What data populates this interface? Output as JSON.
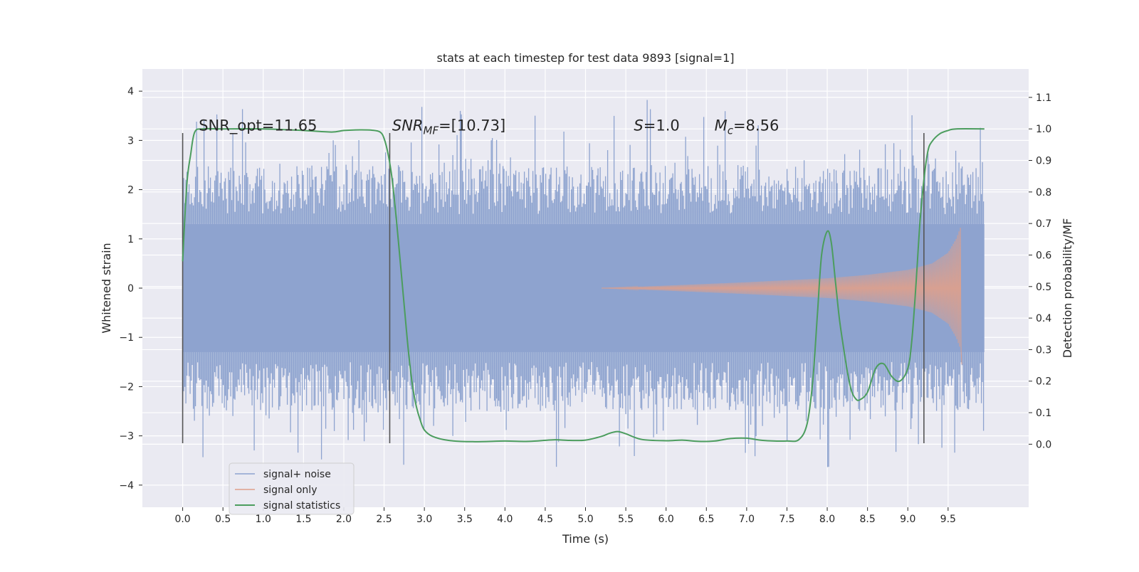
{
  "chart_data": {
    "type": "line",
    "title": "stats at each timestep for test data 9893 [signal=1]",
    "xlabel": "Time (s)",
    "ylabel": "Whitened strain",
    "ylabel_right": "Detection probability/MF",
    "xlim": [
      -0.5,
      10.5
    ],
    "ylim": [
      -4.45,
      4.45
    ],
    "ylim_right": [
      -0.2,
      1.19
    ],
    "x_ticks": [
      0.0,
      0.5,
      1.0,
      1.5,
      2.0,
      2.5,
      3.0,
      3.5,
      4.0,
      4.5,
      5.0,
      5.5,
      6.0,
      6.5,
      7.0,
      7.5,
      8.0,
      8.5,
      9.0,
      9.5
    ],
    "x_tick_labels": [
      "0.0",
      "0.5",
      "1.0",
      "1.5",
      "2.0",
      "2.5",
      "3.0",
      "3.5",
      "4.0",
      "4.5",
      "5.0",
      "5.5",
      "6.0",
      "6.5",
      "7.0",
      "7.5",
      "8.0",
      "8.5",
      "9.0",
      "9.5"
    ],
    "y_ticks": [
      -4,
      -3,
      -2,
      -1,
      0,
      1,
      2,
      3,
      4
    ],
    "y_tick_labels": [
      "−4",
      "−3",
      "−2",
      "−1",
      "0",
      "1",
      "2",
      "3",
      "4"
    ],
    "y_right_ticks": [
      0.0,
      0.1,
      0.2,
      0.3,
      0.4,
      0.5,
      0.6,
      0.7,
      0.8,
      0.9,
      1.0,
      1.1
    ],
    "y_right_tick_labels": [
      "0.0",
      "0.1",
      "0.2",
      "0.3",
      "0.4",
      "0.5",
      "0.6",
      "0.7",
      "0.8",
      "0.9",
      "1.0",
      "1.1"
    ],
    "grid": true,
    "legend_position": "lower-left",
    "annotations": [
      {
        "text": "SNR_opt=11.65",
        "x": 0.2,
        "y": 3.2
      },
      {
        "text_base": "SNR",
        "text_sub": "MF",
        "text_rest": "=[10.73]",
        "x": 2.6,
        "y": 3.2
      },
      {
        "text_base": "S",
        "text_sub": "",
        "text_rest": "=1.0",
        "x": 5.6,
        "y": 3.2
      },
      {
        "text_base": "M",
        "text_sub": "c",
        "text_rest": "=8.56",
        "x": 6.6,
        "y": 3.2
      }
    ],
    "vlines": [
      {
        "x": 0.0,
        "y_range": [
          -3.15,
          3.15
        ]
      },
      {
        "x": 2.57,
        "y_range": [
          -3.15,
          3.15
        ]
      },
      {
        "x": 9.2,
        "y_range": [
          -3.15,
          3.15
        ]
      }
    ],
    "series": [
      {
        "name": "signal+ noise",
        "axis": "left",
        "color": "#8ea3cf",
        "kind": "noise",
        "x_range": [
          0.0,
          9.95
        ],
        "envelope": {
          "core": 1.3,
          "typical_peak": 2.3,
          "max_peak": 4.05,
          "min_peak": -3.95
        }
      },
      {
        "name": "signal only",
        "axis": "left",
        "color": "#e0a08a",
        "kind": "chirp",
        "x_range": [
          5.2,
          9.67
        ],
        "amplitude_points": [
          [
            5.2,
            0.0
          ],
          [
            6.0,
            0.05
          ],
          [
            7.0,
            0.12
          ],
          [
            8.0,
            0.2
          ],
          [
            8.5,
            0.27
          ],
          [
            9.0,
            0.37
          ],
          [
            9.3,
            0.5
          ],
          [
            9.5,
            0.72
          ],
          [
            9.6,
            1.0
          ],
          [
            9.67,
            1.3
          ]
        ]
      },
      {
        "name": "signal statistics",
        "axis": "right",
        "color": "#4c9d5e",
        "kind": "line",
        "points": [
          [
            0.0,
            0.58
          ],
          [
            0.05,
            0.82
          ],
          [
            0.1,
            0.92
          ],
          [
            0.15,
            0.99
          ],
          [
            0.25,
            1.0
          ],
          [
            0.5,
            1.0
          ],
          [
            1.0,
            1.0
          ],
          [
            1.5,
            0.995
          ],
          [
            1.85,
            0.99
          ],
          [
            2.0,
            0.995
          ],
          [
            2.2,
            0.997
          ],
          [
            2.35,
            0.996
          ],
          [
            2.45,
            0.99
          ],
          [
            2.5,
            0.97
          ],
          [
            2.55,
            0.92
          ],
          [
            2.6,
            0.84
          ],
          [
            2.65,
            0.72
          ],
          [
            2.7,
            0.58
          ],
          [
            2.75,
            0.44
          ],
          [
            2.8,
            0.3
          ],
          [
            2.85,
            0.19
          ],
          [
            2.9,
            0.12
          ],
          [
            2.95,
            0.075
          ],
          [
            3.0,
            0.045
          ],
          [
            3.1,
            0.025
          ],
          [
            3.3,
            0.012
          ],
          [
            3.6,
            0.008
          ],
          [
            4.0,
            0.01
          ],
          [
            4.3,
            0.009
          ],
          [
            4.6,
            0.014
          ],
          [
            4.8,
            0.012
          ],
          [
            5.0,
            0.013
          ],
          [
            5.2,
            0.025
          ],
          [
            5.3,
            0.035
          ],
          [
            5.4,
            0.04
          ],
          [
            5.5,
            0.033
          ],
          [
            5.7,
            0.015
          ],
          [
            6.0,
            0.011
          ],
          [
            6.2,
            0.013
          ],
          [
            6.4,
            0.009
          ],
          [
            6.6,
            0.01
          ],
          [
            6.8,
            0.018
          ],
          [
            7.0,
            0.019
          ],
          [
            7.2,
            0.012
          ],
          [
            7.5,
            0.01
          ],
          [
            7.65,
            0.015
          ],
          [
            7.75,
            0.065
          ],
          [
            7.82,
            0.2
          ],
          [
            7.88,
            0.42
          ],
          [
            7.93,
            0.6
          ],
          [
            8.0,
            0.675
          ],
          [
            8.05,
            0.64
          ],
          [
            8.1,
            0.52
          ],
          [
            8.15,
            0.4
          ],
          [
            8.2,
            0.31
          ],
          [
            8.25,
            0.23
          ],
          [
            8.3,
            0.17
          ],
          [
            8.35,
            0.145
          ],
          [
            8.4,
            0.14
          ],
          [
            8.5,
            0.165
          ],
          [
            8.6,
            0.24
          ],
          [
            8.7,
            0.255
          ],
          [
            8.8,
            0.215
          ],
          [
            8.9,
            0.2
          ],
          [
            9.0,
            0.24
          ],
          [
            9.05,
            0.33
          ],
          [
            9.1,
            0.5
          ],
          [
            9.15,
            0.7
          ],
          [
            9.2,
            0.84
          ],
          [
            9.25,
            0.93
          ],
          [
            9.3,
            0.96
          ],
          [
            9.4,
            0.985
          ],
          [
            9.5,
            0.995
          ],
          [
            9.6,
            1.0
          ],
          [
            9.95,
            1.0
          ]
        ]
      }
    ]
  }
}
